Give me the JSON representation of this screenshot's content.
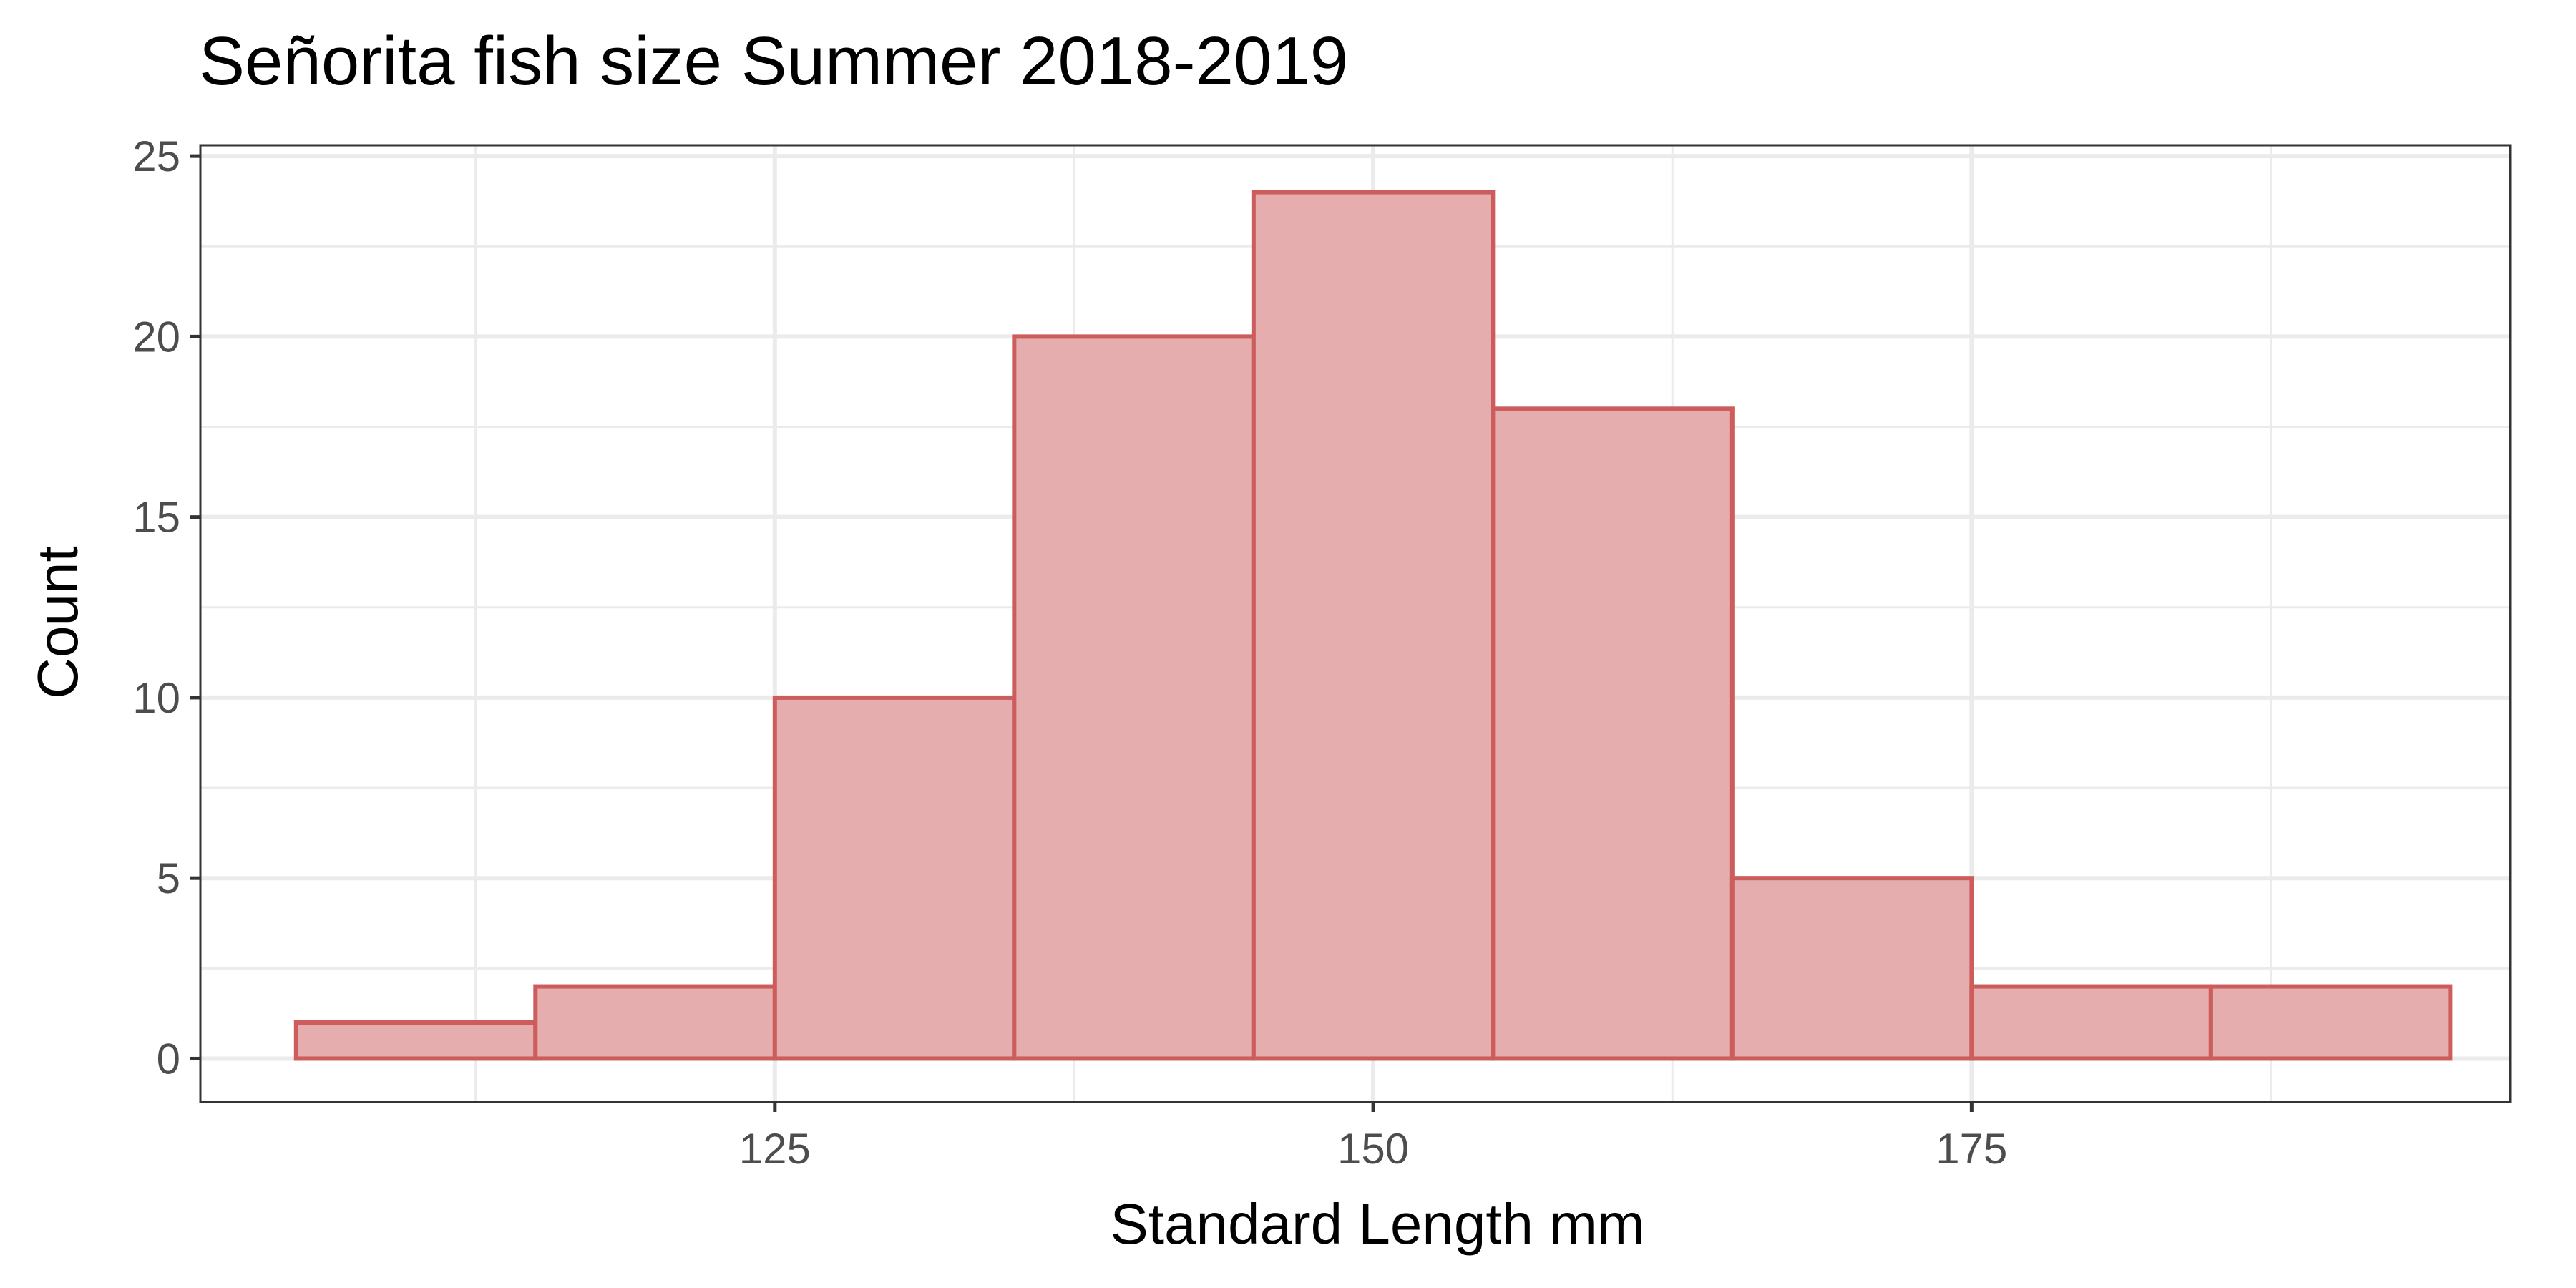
{
  "chart_data": {
    "type": "histogram",
    "title": "Señorita fish size Summer 2018-2019",
    "xlabel": "Standard Length mm",
    "ylabel": "Count",
    "xlim": [
      101,
      197.5
    ],
    "ylim": [
      -1.2,
      25.3
    ],
    "x_ticks": [
      125,
      150,
      175
    ],
    "x_minor_ticks": [
      112.5,
      137.5,
      162.5,
      187.5
    ],
    "y_ticks": [
      0,
      5,
      10,
      15,
      20,
      25
    ],
    "y_minor_ticks": [
      2.5,
      7.5,
      12.5,
      17.5,
      22.5
    ],
    "grid": true,
    "bin_width": 10,
    "bins": [
      {
        "x0": 105,
        "x1": 115,
        "count": 1
      },
      {
        "x0": 115,
        "x1": 125,
        "count": 2
      },
      {
        "x0": 125,
        "x1": 135,
        "count": 10
      },
      {
        "x0": 135,
        "x1": 145,
        "count": 20
      },
      {
        "x0": 145,
        "x1": 155,
        "count": 24
      },
      {
        "x0": 155,
        "x1": 165,
        "count": 18
      },
      {
        "x0": 165,
        "x1": 175,
        "count": 5
      },
      {
        "x0": 175,
        "x1": 185,
        "count": 2
      },
      {
        "x0": 185,
        "x1": 195,
        "count": 2
      }
    ],
    "fill_color": "#e5adad",
    "stroke_color": "#cd5c5c"
  }
}
